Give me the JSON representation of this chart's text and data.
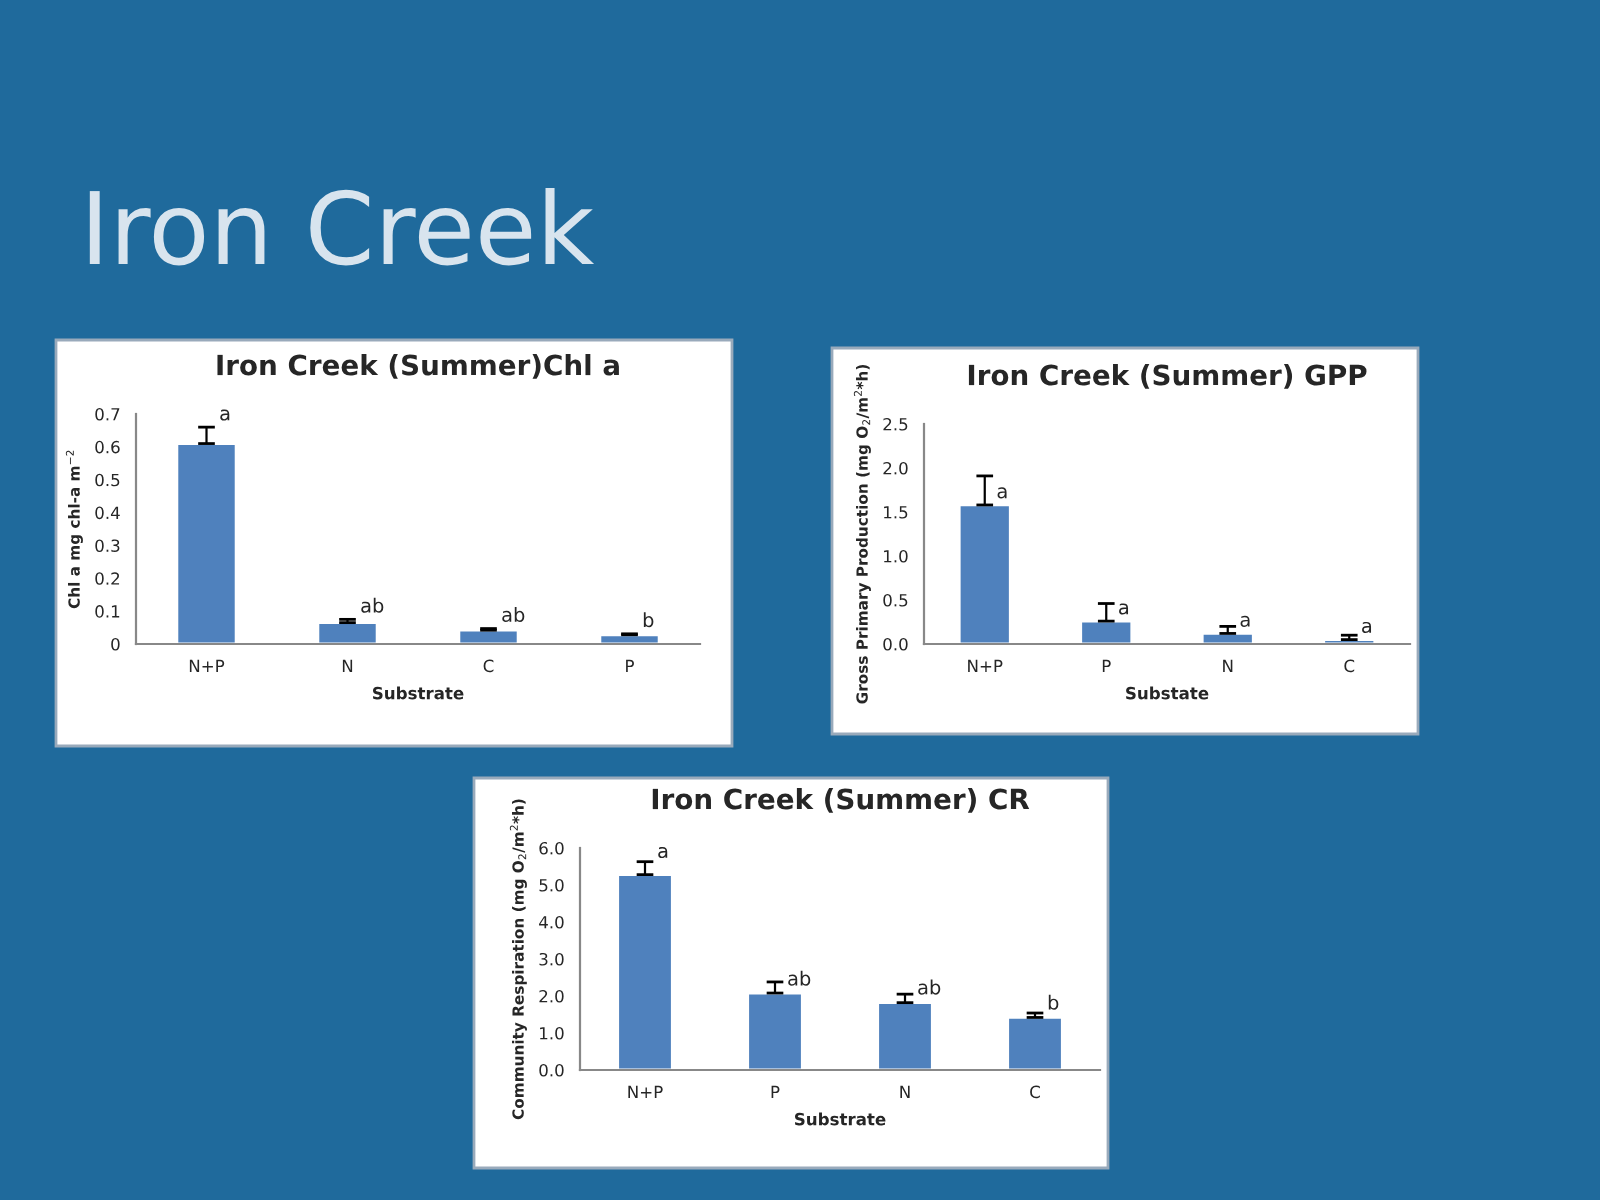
{
  "chart_data": [
    {
      "type": "other",
      "title": "Iron Creek"
    },
    {
      "type": "bar",
      "title": "Iron Creek (Summer)Chl a",
      "xlabel": "Substrate",
      "ylabel": "Chl a mg chl-a m$^{−2}$",
      "categories": [
        "N+P",
        "N",
        "C",
        "P"
      ],
      "values": [
        0.61,
        0.065,
        0.042,
        0.028
      ],
      "color": "#4f81bd",
      "errors": [
        [
          0.61,
          0.66
        ],
        [
          0.065,
          0.075
        ],
        [
          0.042,
          0.047
        ],
        [
          0.028,
          0.031
        ]
      ],
      "ylim": [
        0,
        0.7
      ],
      "yticks": [
        0,
        0.1,
        0.2,
        0.3,
        0.4,
        0.5,
        0.6,
        0.7
      ],
      "grid": false,
      "legend": false,
      "annotations": [
        {
          "text": "a",
          "x": "N+P",
          "y": 0.66
        },
        {
          "text": "ab",
          "x": "N",
          "y": 0.075
        },
        {
          "text": "ab",
          "x": "C",
          "y": 0.047
        },
        {
          "text": "b",
          "x": "P",
          "y": 0.031
        }
      ]
    },
    {
      "type": "bar",
      "title": "Iron Creek (Summer) GPP",
      "xlabel": "Substate",
      "ylabel": "Gross Primary Production (mg O$_{2}$/m$^{2}$*h)",
      "categories": [
        "N+P",
        "P",
        "N",
        "C"
      ],
      "values": [
        1.58,
        0.26,
        0.12,
        0.05
      ],
      "color": "#4f81bd",
      "errors": [
        [
          1.58,
          1.91
        ],
        [
          0.26,
          0.46
        ],
        [
          0.12,
          0.2
        ],
        [
          0.05,
          0.1
        ]
      ],
      "ylim": [
        0,
        2.5
      ],
      "yticks": [
        {
          "value": 0,
          "label": "0.0"
        },
        {
          "value": 0.5,
          "label": "0.5"
        },
        {
          "value": 1,
          "label": "1.0"
        },
        {
          "value": 1.5,
          "label": "1.5"
        },
        {
          "value": 2,
          "label": "2.0"
        },
        {
          "value": 2.5,
          "label": "2.5"
        }
      ],
      "grid": false,
      "legend": false,
      "annotations": [
        {
          "text": "a",
          "x": "N+P",
          "y": 1.58
        },
        {
          "text": "a",
          "x": "P",
          "y": 0.26
        },
        {
          "text": "a",
          "x": "N",
          "y": 0.12
        },
        {
          "text": "a",
          "x": "C",
          "y": 0.05
        }
      ]
    },
    {
      "type": "bar",
      "title": "Iron Creek (Summer) CR",
      "xlabel": "Substrate",
      "ylabel": "Community Respiration (mg O$_{2}$/m$^{2}$*h)",
      "categories": [
        "N+P",
        "P",
        "N",
        "C"
      ],
      "values": [
        5.28,
        2.08,
        1.82,
        1.42
      ],
      "color": "#4f81bd",
      "errors": [
        [
          5.28,
          5.63
        ],
        [
          2.08,
          2.38
        ],
        [
          1.82,
          2.05
        ],
        [
          1.42,
          1.54
        ]
      ],
      "ylim": [
        0,
        6
      ],
      "yticks": [
        {
          "value": 0,
          "label": "0.0"
        },
        {
          "value": 1,
          "label": "1.0"
        },
        {
          "value": 2,
          "label": "2.0"
        },
        {
          "value": 3,
          "label": "3.0"
        },
        {
          "value": 4,
          "label": "4.0"
        },
        {
          "value": 5,
          "label": "5.0"
        },
        {
          "value": 6,
          "label": "6.0"
        }
      ],
      "grid": false,
      "legend": false,
      "annotations": [
        {
          "text": "a",
          "x": "N+P",
          "y": 5.55
        },
        {
          "text": "ab",
          "x": "P",
          "y": 2.1
        },
        {
          "text": "ab",
          "x": "N",
          "y": 1.86
        },
        {
          "text": "b",
          "x": "C",
          "y": 1.45
        }
      ]
    }
  ]
}
